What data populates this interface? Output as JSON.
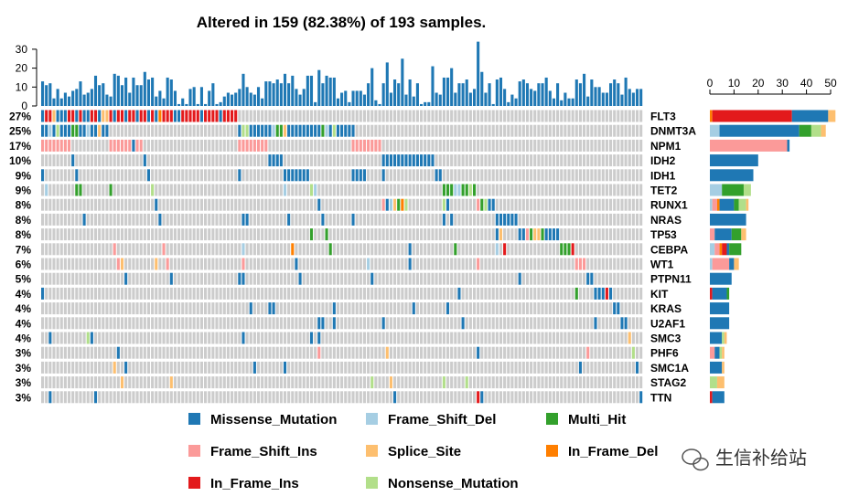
{
  "chart_data": {
    "type": "oncoplot",
    "title": "Altered in 159 (82.38%) of 193 samples.",
    "n_samples": 159,
    "colors": {
      "M": "#1F78B4",
      "D": "#A6CEE3",
      "H": "#33A02C",
      "I": "#FB9A99",
      "S": "#FDBF6F",
      "F": "#FF7F00",
      "N": "#E31A1C",
      "X": "#B2DF8A",
      "none": "#CCCCCC"
    },
    "legend": [
      {
        "code": "M",
        "label": "Missense_Mutation"
      },
      {
        "code": "D",
        "label": "Frame_Shift_Del"
      },
      {
        "code": "H",
        "label": "Multi_Hit"
      },
      {
        "code": "I",
        "label": "Frame_Shift_Ins"
      },
      {
        "code": "S",
        "label": "Splice_Site"
      },
      {
        "code": "F",
        "label": "In_Frame_Del"
      },
      {
        "code": "N",
        "label": "In_Frame_Ins"
      },
      {
        "code": "X",
        "label": "Nonsense_Mutation"
      }
    ],
    "top_bar": {
      "yticks": [
        0,
        10,
        20,
        30
      ],
      "ylim": [
        0,
        30
      ],
      "values": [
        13,
        11,
        12,
        4,
        9,
        4,
        7,
        5,
        8,
        9,
        13,
        6,
        7,
        9,
        16,
        11,
        12,
        6,
        5,
        17,
        16,
        11,
        15,
        7,
        15,
        11,
        11,
        18,
        14,
        15,
        5,
        8,
        4,
        15,
        14,
        8,
        1,
        4,
        1,
        9,
        10,
        1,
        10,
        1,
        8,
        12,
        1,
        2,
        5,
        7,
        6,
        7,
        9,
        17,
        10,
        7,
        6,
        10,
        4,
        13,
        13,
        12,
        14,
        12,
        17,
        12,
        16,
        9,
        6,
        9,
        16,
        16,
        2,
        19,
        12,
        16,
        15,
        15,
        4,
        7,
        8,
        2,
        8,
        8,
        8,
        6,
        12,
        20,
        3,
        1,
        12,
        23,
        7,
        14,
        12,
        25,
        6,
        14,
        5,
        12,
        1,
        2,
        2,
        21,
        7,
        6,
        15,
        15,
        20,
        7,
        12,
        12,
        14,
        7,
        9,
        34,
        18,
        7,
        12,
        1,
        14,
        15,
        9,
        2,
        6,
        4,
        13,
        14,
        12,
        9,
        8,
        12,
        12,
        15,
        8,
        4,
        12,
        3,
        7,
        4,
        4,
        14,
        12,
        17,
        5,
        14,
        10,
        10,
        7,
        7,
        12,
        14,
        12,
        6,
        15,
        9,
        7,
        9,
        9
      ]
    },
    "side_bar": {
      "xticks": [
        0,
        10,
        20,
        30,
        40,
        50
      ],
      "xlim": [
        0,
        50
      ],
      "stack_order": [
        "D",
        "I",
        "F",
        "N",
        "M",
        "H",
        "X",
        "S"
      ]
    },
    "genes": [
      {
        "name": "FLT3",
        "pct": "27%",
        "counts": {
          "F": 1,
          "N": 33,
          "M": 15,
          "S": 3
        },
        "cells": [
          "0:MNNSMMMNNMNMMNNMSSNMNNMNNMNNMNMFNNNMMNN",
          "39:NNNMNNNNMNNNN"
        ]
      },
      {
        "name": "DNMT3A",
        "pct": "25%",
        "counts": {
          "D": 4,
          "M": 33,
          "H": 5,
          "X": 4,
          "S": 2
        },
        "cells": [
          "0:MMDMXMMMHHMMDMMSMM",
          "52:MXXMMMMMMDHHSMMMMMMMMMHDMXMM",
          "80:MMM"
        ]
      },
      {
        "name": "NPM1",
        "pct": "17%",
        "counts": {
          "I": 32,
          "M": 1
        },
        "cells": [
          "0:IIIIIIII",
          "18:IIIIIIMII",
          "52:IIIIIIII",
          "82:IIIIIIII"
        ]
      },
      {
        "name": "IDH2",
        "pct": "10%",
        "counts": {
          "M": 20
        },
        "cells": [
          "8:M",
          "27:M",
          "60:MMMM",
          "90:MMMMMMMMMMMMMM"
        ]
      },
      {
        "name": "IDH1",
        "pct": "9%",
        "counts": {
          "M": 18
        },
        "cells": [
          "0:M",
          "9:M",
          "28:M",
          "52:M",
          "64:MMMMMMM",
          "82:MMMM",
          "90:M",
          "104:MM"
        ]
      },
      {
        "name": "TET2",
        "pct": "9%",
        "counts": {
          "D": 5,
          "H": 9,
          "X": 3
        },
        "cells": [
          "1:D",
          "9:HH",
          "18:H",
          "29:X",
          "64:D",
          "71:XD",
          "106:HHHDDHHXH"
        ]
      },
      {
        "name": "RUNX1",
        "pct": "8%",
        "counts": {
          "D": 1,
          "I": 2,
          "F": 1,
          "M": 6,
          "H": 2,
          "X": 3,
          "S": 1
        },
        "cells": [
          "30:M",
          "73:M",
          "90:IMDSHFX",
          "106:XM",
          "115:IHXMM"
        ]
      },
      {
        "name": "NRAS",
        "pct": "8%",
        "counts": {
          "M": 15
        },
        "cells": [
          "11:M",
          "31:M",
          "53:MM",
          "65:M",
          "74:M",
          "82:M",
          "106:M",
          "108:M",
          "120:MMMMMM"
        ]
      },
      {
        "name": "TP53",
        "pct": "8%",
        "counts": {
          "I": 2,
          "M": 7,
          "H": 4,
          "S": 2
        },
        "cells": [
          "71:H",
          "75:H",
          "120:MS",
          "126:MMIHSSHMMMM"
        ]
      },
      {
        "name": "CEBPA",
        "pct": "7%",
        "counts": {
          "D": 2,
          "I": 2,
          "F": 1,
          "N": 2,
          "M": 1,
          "H": 5
        },
        "cells": [
          "19:I",
          "32:I",
          "53:D",
          "66:F",
          "76:H",
          "97:M",
          "109:H",
          "120:D",
          "122:N",
          "137:HHHN"
        ]
      },
      {
        "name": "WT1",
        "pct": "6%",
        "counts": {
          "D": 1,
          "I": 7,
          "M": 2,
          "S": 2
        },
        "cells": [
          "20:IS",
          "30:S",
          "33:I",
          "53:I",
          "67:M",
          "86:D",
          "97:M",
          "115:I",
          "141:III"
        ]
      },
      {
        "name": "PTPN11",
        "pct": "5%",
        "counts": {
          "M": 9
        },
        "cells": [
          "22:M",
          "34:M",
          "52:MM",
          "68:M",
          "87:M",
          "126:M",
          "144:MM"
        ]
      },
      {
        "name": "KIT",
        "pct": "4%",
        "counts": {
          "N": 1,
          "M": 6,
          "H": 1
        },
        "cells": [
          "0:M",
          "110:M",
          "141:H",
          "146:MMMNM"
        ]
      },
      {
        "name": "KRAS",
        "pct": "4%",
        "counts": {
          "M": 8
        },
        "cells": [
          "55:M",
          "60:MM",
          "77:M",
          "98:M",
          "107:M",
          "151:MM"
        ]
      },
      {
        "name": "U2AF1",
        "pct": "4%",
        "counts": {
          "M": 8
        },
        "cells": [
          "73:MM",
          "77:M",
          "90:M",
          "111:M",
          "146:M",
          "153:MM"
        ]
      },
      {
        "name": "SMC3",
        "pct": "4%",
        "counts": {
          "M": 5,
          "X": 1,
          "S": 1
        },
        "cells": [
          "2:M",
          "12:XM",
          "53:M",
          "71:M",
          "73:M",
          "155:S"
        ]
      },
      {
        "name": "PHF6",
        "pct": "3%",
        "counts": {
          "I": 2,
          "M": 2,
          "X": 1,
          "S": 1
        },
        "cells": [
          "20:M",
          "73:I",
          "91:S",
          "115:M",
          "144:I",
          "156:X"
        ]
      },
      {
        "name": "SMC1A",
        "pct": "3%",
        "counts": {
          "M": 5,
          "S": 1
        },
        "cells": [
          "19:S",
          "22:M",
          "56:M",
          "64:M",
          "142:M",
          "157:M"
        ]
      },
      {
        "name": "STAG2",
        "pct": "3%",
        "counts": {
          "X": 3,
          "S": 3
        },
        "cells": [
          "21:S",
          "34:S",
          "87:X",
          "92:S",
          "106:X",
          "112:X"
        ]
      },
      {
        "name": "TTN",
        "pct": "3%",
        "counts": {
          "N": 1,
          "M": 5
        },
        "cells": [
          "2:M",
          "14:M",
          "93:M",
          "115:NM",
          "158:M"
        ]
      }
    ]
  },
  "watermark": {
    "text": "生信补给站",
    "icon": "wechat-icon"
  }
}
